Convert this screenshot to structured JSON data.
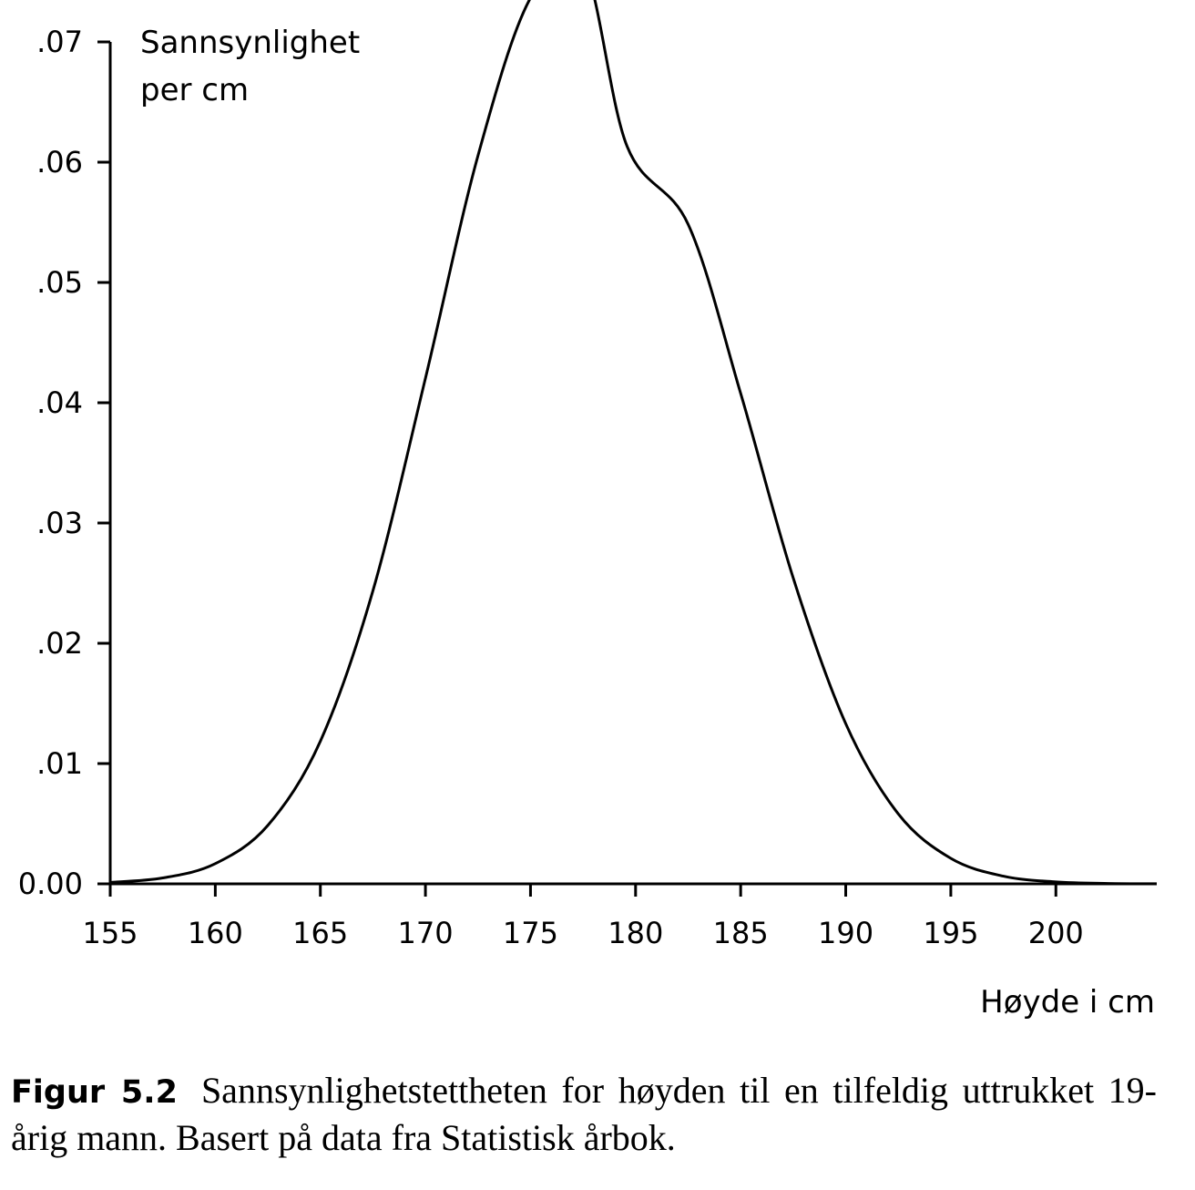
{
  "chart_data": {
    "type": "line",
    "ylabel_line1": "Sannsynlighet",
    "ylabel_line2": "per cm",
    "xlabel": "Høyde i cm",
    "xlim": [
      155,
      204.8
    ],
    "ylim": [
      0,
      0.07
    ],
    "x_ticks": [
      155,
      160,
      165,
      170,
      175,
      180,
      185,
      190,
      195,
      200
    ],
    "x_tick_labels": [
      "155",
      "160",
      "165",
      "170",
      "175",
      "180",
      "185",
      "190",
      "195",
      "200"
    ],
    "y_ticks": [
      0,
      0.01,
      0.02,
      0.03,
      0.04,
      0.05,
      0.06,
      0.07
    ],
    "y_tick_labels": [
      "0.00",
      ".01",
      ".02",
      ".03",
      ".04",
      ".05",
      ".06",
      ".07"
    ],
    "grid": false,
    "series": [
      {
        "x": [
          155,
          157.5,
          160,
          162.5,
          165,
          167.5,
          170,
          172.5,
          175,
          177.5,
          179.6,
          182.5,
          185,
          187.5,
          190,
          192.5,
          195,
          197.5,
          200,
          202.5,
          204.8
        ],
        "values": [
          0.00012,
          0.00049,
          0.00168,
          0.00486,
          0.01186,
          0.02436,
          0.04203,
          0.06054,
          0.07366,
          0.07642,
          0.0613,
          0.05484,
          0.04078,
          0.02544,
          0.01332,
          0.00582,
          0.00212,
          0.00064,
          0.00016,
          3e-05,
          1e-05
        ]
      }
    ],
    "color": "#000000"
  },
  "caption": {
    "label": "Figur 5.2",
    "text": "Sannsynlighetstettheten for høyden til en tilfeldig uttrukket 19-årig mann. Basert på data fra Statistisk årbok."
  }
}
